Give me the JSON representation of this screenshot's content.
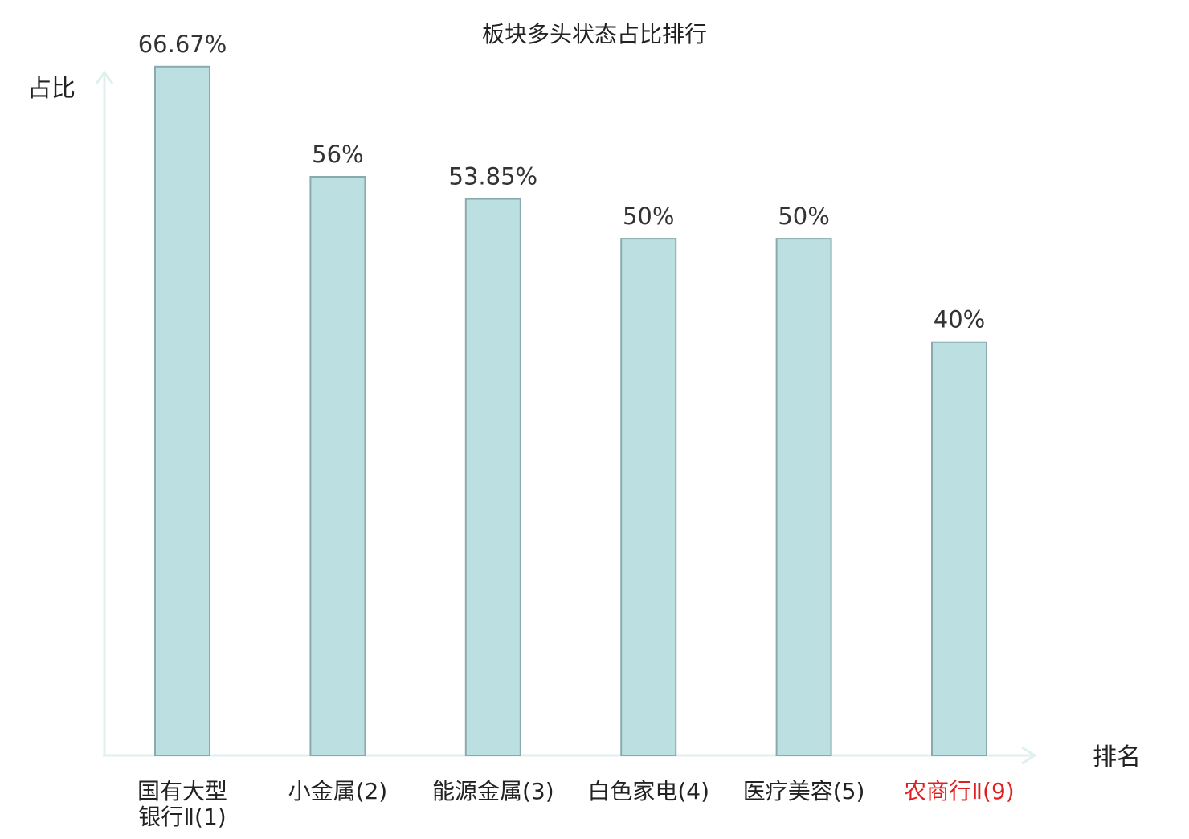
{
  "chart_data": {
    "type": "bar",
    "title": "板块多头状态占比排行",
    "ylabel": "占比",
    "xlabel": "排名",
    "ylim": [
      0,
      70
    ],
    "grid": false,
    "legend": "none",
    "categories": [
      {
        "lines": [
          "国有大型",
          "银行Ⅱ(1)"
        ],
        "highlight": false
      },
      {
        "lines": [
          "小金属(2)"
        ],
        "highlight": false
      },
      {
        "lines": [
          "能源金属(3)"
        ],
        "highlight": false
      },
      {
        "lines": [
          "白色家电(4)"
        ],
        "highlight": false
      },
      {
        "lines": [
          "医疗美容(5)"
        ],
        "highlight": false
      },
      {
        "lines": [
          "农商行Ⅱ(9)"
        ],
        "highlight": true
      }
    ],
    "values": [
      66.67,
      56,
      53.85,
      50,
      50,
      40
    ],
    "value_labels": [
      "66.67%",
      "56%",
      "53.85%",
      "50%",
      "50%",
      "40%"
    ],
    "colors": {
      "bar_fill": "#bce0e2",
      "bar_stroke": "#8aabad",
      "axis": "#dff0ee",
      "text": "#333333",
      "highlight_text": "#e02020"
    }
  }
}
